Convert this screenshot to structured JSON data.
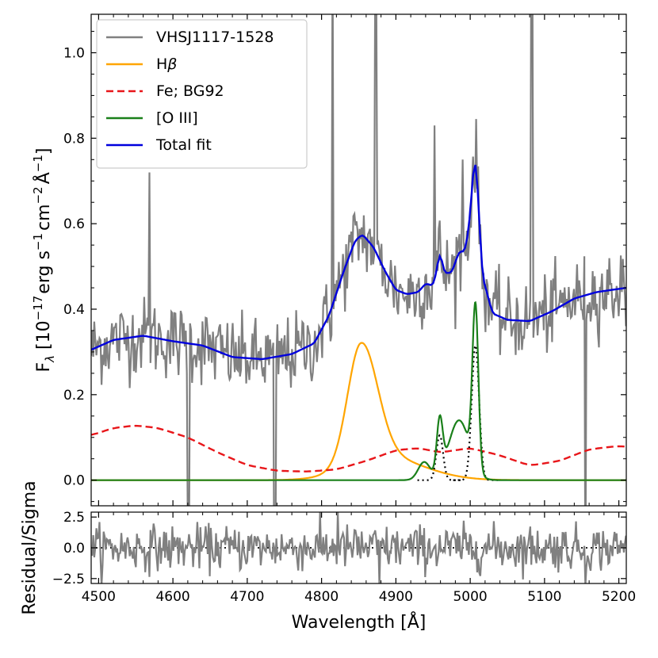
{
  "chart_data": [
    {
      "type": "line",
      "panel": "main",
      "xlabel": "Wavelength [Å]",
      "ylabel_prefix": "F",
      "ylabel_sub": "λ",
      "ylabel_rest": " [10",
      "ylabel_exp1": "−17",
      "ylabel_unit1": "erg s",
      "ylabel_exp2": "−1",
      "ylabel_unit2": "cm",
      "ylabel_exp3": "−2",
      "ylabel_unit3": "Å",
      "ylabel_exp4": "−1",
      "ylabel_close": "]",
      "xlim": [
        4490,
        5210
      ],
      "ylim": [
        -0.06,
        1.09
      ],
      "xticks": [
        4500,
        4600,
        4700,
        4800,
        4900,
        5000,
        5100,
        5200
      ],
      "yticks": [
        0.0,
        0.2,
        0.4,
        0.6,
        0.8,
        1.0
      ],
      "ytick_labels": [
        "0.0",
        "0.2",
        "0.4",
        "0.6",
        "0.8",
        "1.0"
      ],
      "legend_location": "upper-left",
      "series": [
        {
          "name": "VHSJ1117-1528",
          "color": "#808080",
          "style": "solid",
          "kind": "noisy-spectrum"
        },
        {
          "name": "Hβ",
          "name_plain": "H",
          "name_greek": "β",
          "color": "#FFA500",
          "style": "solid",
          "components": [
            {
              "center": 4853,
              "amp": 0.275,
              "sigma_left": 18,
              "sigma_right": 22
            },
            {
              "center": 4880,
              "amp": 0.055,
              "sigma_left": 45,
              "sigma_right": 55
            }
          ]
        },
        {
          "name": "Fe; BG92",
          "color": "#E8161A",
          "style": "dashed",
          "x": [
            4490,
            4520,
            4550,
            4580,
            4620,
            4660,
            4700,
            4740,
            4780,
            4820,
            4860,
            4900,
            4930,
            4960,
            5000,
            5040,
            5080,
            5120,
            5160,
            5200,
            5210
          ],
          "y": [
            0.105,
            0.122,
            0.128,
            0.122,
            0.1,
            0.065,
            0.035,
            0.022,
            0.02,
            0.025,
            0.045,
            0.07,
            0.075,
            0.065,
            0.075,
            0.058,
            0.034,
            0.045,
            0.072,
            0.08,
            0.078
          ]
        },
        {
          "name": "[O III]",
          "color": "#1A801A",
          "style": "solid",
          "components": [
            {
              "center": 4959,
              "amp": 0.125,
              "sigma": 4
            },
            {
              "center": 5007,
              "amp": 0.375,
              "sigma": 4
            },
            {
              "center": 4938,
              "amp": 0.042,
              "sigma": 8
            },
            {
              "center": 4985,
              "amp": 0.14,
              "sigma": 14
            }
          ]
        },
        {
          "name": "Total fit",
          "color": "#0000DD",
          "style": "solid",
          "x": [
            4490,
            4520,
            4560,
            4600,
            4640,
            4680,
            4720,
            4760,
            4790,
            4810,
            4830,
            4845,
            4855,
            4870,
            4885,
            4900,
            4915,
            4930,
            4940,
            4950,
            4955,
            4959,
            4965,
            4975,
            4985,
            4993,
            4999,
            5003,
            5007,
            5011,
            5016,
            5030,
            5050,
            5080,
            5110,
            5140,
            5170,
            5210
          ],
          "y": [
            0.305,
            0.328,
            0.338,
            0.325,
            0.315,
            0.288,
            0.283,
            0.295,
            0.32,
            0.385,
            0.49,
            0.56,
            0.575,
            0.545,
            0.49,
            0.445,
            0.435,
            0.44,
            0.46,
            0.455,
            0.49,
            0.54,
            0.485,
            0.485,
            0.535,
            0.535,
            0.6,
            0.7,
            0.775,
            0.65,
            0.48,
            0.39,
            0.375,
            0.372,
            0.395,
            0.425,
            0.44,
            0.45
          ]
        }
      ],
      "dotted_components": [
        {
          "center": 4959,
          "amp": 0.105,
          "sigma": 4.5
        },
        {
          "center": 5007,
          "amp": 0.315,
          "sigma": 5.0
        }
      ]
    },
    {
      "type": "line",
      "panel": "residual",
      "ylabel": "Residual/Sigma",
      "xlim": [
        4490,
        5210
      ],
      "ylim": [
        -2.9,
        2.9
      ],
      "yticks": [
        -2.5,
        0.0,
        2.5
      ],
      "ytick_labels": [
        "−2.5",
        "0.0",
        "2.5"
      ],
      "series": [
        {
          "name": "residual",
          "color": "#808080",
          "kind": "noisy"
        }
      ],
      "zero_line": {
        "style": "dotted",
        "color": "#000000"
      }
    }
  ]
}
